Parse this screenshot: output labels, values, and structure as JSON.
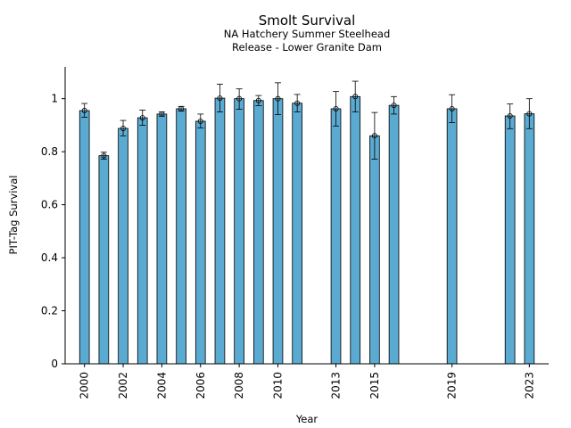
{
  "chart_data": {
    "type": "bar",
    "title": "Smolt Survival",
    "subtitle_lines": [
      "NA Hatchery Summer Steelhead",
      "Release - Lower Granite Dam"
    ],
    "xlabel": "Year",
    "ylabel": "PIT-Tag Survival",
    "xlim": [
      1999,
      2024
    ],
    "ylim": [
      0,
      1.12
    ],
    "y_ticks": [
      0,
      0.2,
      0.4,
      0.6,
      0.8,
      1
    ],
    "x_ticks": [
      2000,
      2002,
      2004,
      2006,
      2008,
      2010,
      2013,
      2015,
      2019,
      2023
    ],
    "bar_color": "#5aaad2",
    "grid": false,
    "legend": "none",
    "points": [
      {
        "x": 2000,
        "value": 0.955,
        "low": 0.93,
        "high": 0.982
      },
      {
        "x": 2001,
        "value": 0.785,
        "low": 0.772,
        "high": 0.798
      },
      {
        "x": 2002,
        "value": 0.888,
        "low": 0.86,
        "high": 0.918
      },
      {
        "x": 2003,
        "value": 0.928,
        "low": 0.9,
        "high": 0.957
      },
      {
        "x": 2004,
        "value": 0.942,
        "low": 0.934,
        "high": 0.95
      },
      {
        "x": 2005,
        "value": 0.962,
        "low": 0.953,
        "high": 0.971
      },
      {
        "x": 2006,
        "value": 0.915,
        "low": 0.89,
        "high": 0.942
      },
      {
        "x": 2007,
        "value": 1.002,
        "low": 0.95,
        "high": 1.055
      },
      {
        "x": 2008,
        "value": 1.0,
        "low": 0.96,
        "high": 1.037
      },
      {
        "x": 2009,
        "value": 0.993,
        "low": 0.974,
        "high": 1.012
      },
      {
        "x": 2010,
        "value": 1.0,
        "low": 0.94,
        "high": 1.06
      },
      {
        "x": 2011,
        "value": 0.983,
        "low": 0.95,
        "high": 1.016
      },
      {
        "x": 2013,
        "value": 0.962,
        "low": 0.897,
        "high": 1.027
      },
      {
        "x": 2014,
        "value": 1.008,
        "low": 0.95,
        "high": 1.066
      },
      {
        "x": 2015,
        "value": 0.86,
        "low": 0.772,
        "high": 0.948
      },
      {
        "x": 2016,
        "value": 0.975,
        "low": 0.942,
        "high": 1.008
      },
      {
        "x": 2019,
        "value": 0.962,
        "low": 0.91,
        "high": 1.015
      },
      {
        "x": 2022,
        "value": 0.935,
        "low": 0.887,
        "high": 0.98
      },
      {
        "x": 2023,
        "value": 0.943,
        "low": 0.887,
        "high": 1.0
      }
    ]
  }
}
